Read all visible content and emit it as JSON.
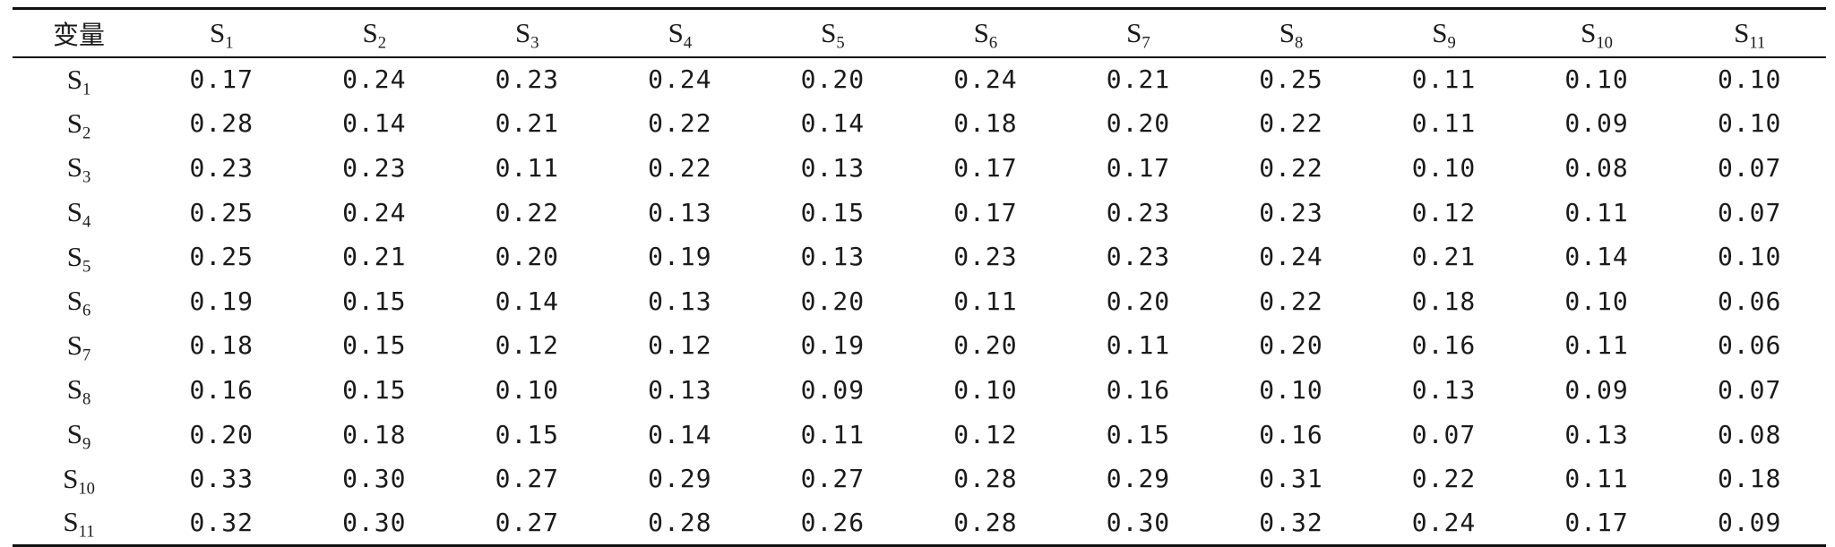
{
  "table": {
    "corner_label": "变量",
    "columns": [
      {
        "base": "S",
        "sub": "1"
      },
      {
        "base": "S",
        "sub": "2"
      },
      {
        "base": "S",
        "sub": "3"
      },
      {
        "base": "S",
        "sub": "4"
      },
      {
        "base": "S",
        "sub": "5"
      },
      {
        "base": "S",
        "sub": "6"
      },
      {
        "base": "S",
        "sub": "7"
      },
      {
        "base": "S",
        "sub": "8"
      },
      {
        "base": "S",
        "sub": "9"
      },
      {
        "base": "S",
        "sub": "10"
      },
      {
        "base": "S",
        "sub": "11"
      }
    ],
    "rows": [
      {
        "label": {
          "base": "S",
          "sub": "1"
        },
        "values": [
          "0.17",
          "0.24",
          "0.23",
          "0.24",
          "0.20",
          "0.24",
          "0.21",
          "0.25",
          "0.11",
          "0.10",
          "0.10"
        ]
      },
      {
        "label": {
          "base": "S",
          "sub": "2"
        },
        "values": [
          "0.28",
          "0.14",
          "0.21",
          "0.22",
          "0.14",
          "0.18",
          "0.20",
          "0.22",
          "0.11",
          "0.09",
          "0.10"
        ]
      },
      {
        "label": {
          "base": "S",
          "sub": "3"
        },
        "values": [
          "0.23",
          "0.23",
          "0.11",
          "0.22",
          "0.13",
          "0.17",
          "0.17",
          "0.22",
          "0.10",
          "0.08",
          "0.07"
        ]
      },
      {
        "label": {
          "base": "S",
          "sub": "4"
        },
        "values": [
          "0.25",
          "0.24",
          "0.22",
          "0.13",
          "0.15",
          "0.17",
          "0.23",
          "0.23",
          "0.12",
          "0.11",
          "0.07"
        ]
      },
      {
        "label": {
          "base": "S",
          "sub": "5"
        },
        "values": [
          "0.25",
          "0.21",
          "0.20",
          "0.19",
          "0.13",
          "0.23",
          "0.23",
          "0.24",
          "0.21",
          "0.14",
          "0.10"
        ]
      },
      {
        "label": {
          "base": "S",
          "sub": "6"
        },
        "values": [
          "0.19",
          "0.15",
          "0.14",
          "0.13",
          "0.20",
          "0.11",
          "0.20",
          "0.22",
          "0.18",
          "0.10",
          "0.06"
        ]
      },
      {
        "label": {
          "base": "S",
          "sub": "7"
        },
        "values": [
          "0.18",
          "0.15",
          "0.12",
          "0.12",
          "0.19",
          "0.20",
          "0.11",
          "0.20",
          "0.16",
          "0.11",
          "0.06"
        ]
      },
      {
        "label": {
          "base": "S",
          "sub": "8"
        },
        "values": [
          "0.16",
          "0.15",
          "0.10",
          "0.13",
          "0.09",
          "0.10",
          "0.16",
          "0.10",
          "0.13",
          "0.09",
          "0.07"
        ]
      },
      {
        "label": {
          "base": "S",
          "sub": "9"
        },
        "values": [
          "0.20",
          "0.18",
          "0.15",
          "0.14",
          "0.11",
          "0.12",
          "0.15",
          "0.16",
          "0.07",
          "0.13",
          "0.08"
        ]
      },
      {
        "label": {
          "base": "S",
          "sub": "10"
        },
        "values": [
          "0.33",
          "0.30",
          "0.27",
          "0.29",
          "0.27",
          "0.28",
          "0.29",
          "0.31",
          "0.22",
          "0.11",
          "0.18"
        ]
      },
      {
        "label": {
          "base": "S",
          "sub": "11"
        },
        "values": [
          "0.32",
          "0.30",
          "0.27",
          "0.28",
          "0.26",
          "0.28",
          "0.30",
          "0.32",
          "0.24",
          "0.17",
          "0.09"
        ]
      }
    ]
  }
}
